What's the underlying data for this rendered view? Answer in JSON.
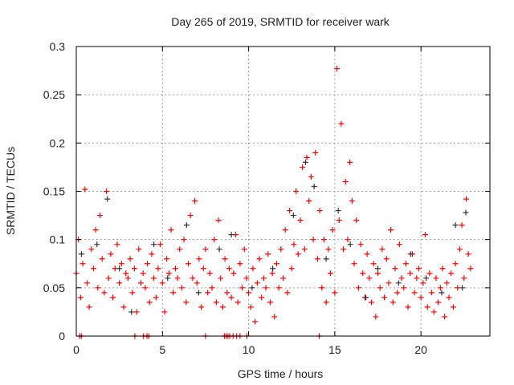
{
  "chart_data": {
    "type": "scatter",
    "title": "Day 265 of 2019, SRMTID for receiver wark",
    "xlabel": "GPS time / hours",
    "ylabel": "SRMTID / TECUs",
    "xlim": [
      0,
      24
    ],
    "ylim": [
      0,
      0.3
    ],
    "xticks": [
      "0",
      "5",
      "10",
      "15",
      "20"
    ],
    "xtick_values": [
      0,
      5,
      10,
      15,
      20
    ],
    "yticks": [
      "0",
      "0.05",
      "0.1",
      "0.15",
      "0.2",
      "0.25",
      "0.3"
    ],
    "ytick_values": [
      0,
      0.05,
      0.1,
      0.15,
      0.2,
      0.25,
      0.3
    ],
    "grid": true,
    "marker": "plus",
    "series": [
      {
        "name": "red",
        "color": "#ff0000",
        "x_start": 0,
        "x_step": 0.125,
        "y": [
          0.065,
          0.1,
          0.04,
          0.075,
          0.152,
          0.055,
          0.03,
          0.09,
          0.07,
          0.11,
          0.05,
          0.125,
          0.08,
          0.045,
          0.15,
          0.06,
          0.085,
          0.04,
          0.07,
          0.095,
          0.055,
          0.075,
          0.03,
          0.065,
          0.06,
          0.08,
          0.045,
          0.07,
          0.025,
          0.09,
          0.055,
          0.065,
          0.05,
          0.075,
          0.035,
          0.085,
          0.06,
          0.04,
          0.07,
          0.095,
          0.055,
          0.025,
          0.08,
          0.065,
          0.11,
          0.045,
          0.07,
          0.06,
          0.09,
          0.05,
          0.1,
          0.035,
          0.075,
          0.125,
          0.06,
          0.14,
          0.055,
          0.08,
          0.03,
          0.07,
          0.09,
          0.045,
          0.065,
          0.05,
          0.1,
          0.035,
          0.12,
          0.06,
          0.03,
          0.08,
          0.045,
          0.07,
          0.04,
          0.065,
          0.105,
          0.035,
          0.075,
          0.05,
          0.09,
          0.06,
          0.045,
          0.03,
          0.07,
          0.015,
          0.055,
          0.08,
          0.04,
          0.06,
          0.05,
          0.085,
          0.035,
          0.065,
          0.02,
          0.075,
          0.05,
          0.09,
          0.06,
          0.11,
          0.045,
          0.13,
          0.07,
          0.095,
          0.15,
          0.085,
          0.12,
          0.175,
          0.09,
          0.185,
          0.14,
          0.165,
          0.1,
          0.19,
          0.08,
          0.13,
          0.05,
          0.1,
          0.035,
          0.09,
          0.065,
          0.11,
          0.045,
          0.277,
          0.12,
          0.22,
          0.09,
          0.16,
          0.1,
          0.18,
          0.14,
          0.075,
          0.12,
          0.05,
          0.095,
          0.065,
          0.04,
          0.085,
          0.06,
          0.035,
          0.075,
          0.02,
          0.065,
          0.05,
          0.09,
          0.04,
          0.08,
          0.055,
          0.11,
          0.035,
          0.07,
          0.045,
          0.095,
          0.06,
          0.05,
          0.075,
          0.03,
          0.065,
          0.085,
          0.045,
          0.06,
          0.07,
          0.04,
          0.055,
          0.105,
          0.03,
          0.065,
          0.045,
          0.025,
          0.06,
          0.035,
          0.05,
          0.07,
          0.02,
          0.055,
          0.04,
          0.065,
          0.03,
          0.075,
          0.05,
          0.09,
          0.115,
          0.06,
          0.142,
          0.085,
          0.07
        ],
        "zero_points_x": [
          0.2,
          0.3,
          3.4,
          3.9,
          4.1,
          4.2,
          7.5,
          8.6,
          8.7,
          8.8,
          8.9,
          9.1,
          9.3,
          9.5,
          9.9,
          14.1
        ]
      },
      {
        "name": "black",
        "color": "#333333",
        "points": [
          [
            0.3,
            0.085
          ],
          [
            1.2,
            0.095
          ],
          [
            1.8,
            0.142
          ],
          [
            2.5,
            0.07
          ],
          [
            3.2,
            0.025
          ],
          [
            4.5,
            0.095
          ],
          [
            5.3,
            0.06
          ],
          [
            6.4,
            0.115
          ],
          [
            7.1,
            0.045
          ],
          [
            8.3,
            0.09
          ],
          [
            9.0,
            0.105
          ],
          [
            10.2,
            0.05
          ],
          [
            11.4,
            0.07
          ],
          [
            12.6,
            0.125
          ],
          [
            13.3,
            0.18
          ],
          [
            13.8,
            0.155
          ],
          [
            14.5,
            0.08
          ],
          [
            15.2,
            0.13
          ],
          [
            15.9,
            0.095
          ],
          [
            16.8,
            0.04
          ],
          [
            17.5,
            0.07
          ],
          [
            18.7,
            0.055
          ],
          [
            19.4,
            0.085
          ],
          [
            20.3,
            0.06
          ],
          [
            21.2,
            0.045
          ],
          [
            22.0,
            0.115
          ],
          [
            22.6,
            0.128
          ],
          [
            22.4,
            0.05
          ]
        ]
      }
    ]
  }
}
